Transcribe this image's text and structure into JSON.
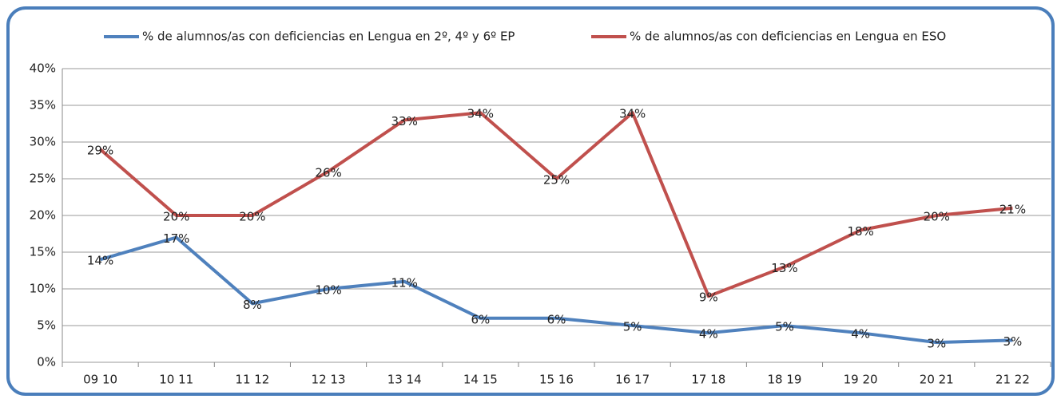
{
  "chart_data": {
    "type": "line",
    "categories": [
      "09 10",
      "10 11",
      "11 12",
      "12 13",
      "13 14",
      "14 15",
      "15 16",
      "16 17",
      "17 18",
      "18 19",
      "19 20",
      "20 21",
      "21 22"
    ],
    "series": [
      {
        "name": "% de alumnos/as con deficiencias en Lengua  en 2º, 4º y 6º EP",
        "color": "#4f81bd",
        "values": [
          14,
          17,
          8,
          10,
          11,
          6,
          6,
          5,
          4,
          5,
          4,
          2.7,
          3
        ],
        "value_labels": [
          "14%",
          "17%",
          "8%",
          "10%",
          "11%",
          "6%",
          "6%",
          "5%",
          "4%",
          "5%",
          "4%",
          "3%",
          "3%"
        ]
      },
      {
        "name": "% de alumnos/as con deficiencias en Lengua  en  ESO",
        "color": "#c0504d",
        "values": [
          29,
          20,
          20,
          26,
          33,
          34,
          25,
          34,
          9,
          13,
          18,
          20,
          21
        ],
        "value_labels": [
          "29%",
          "20%",
          "20%",
          "26%",
          "33%",
          "34%",
          "25%",
          "34%",
          "9%",
          "13%",
          "18%",
          "20%",
          "21%"
        ]
      }
    ],
    "ylim": [
      0,
      40
    ],
    "yticks": [
      {
        "value": 0,
        "label": "0%"
      },
      {
        "value": 5,
        "label": "5%"
      },
      {
        "value": 10,
        "label": "10%"
      },
      {
        "value": 15,
        "label": "15%"
      },
      {
        "value": 20,
        "label": "20%"
      },
      {
        "value": 25,
        "label": "25%"
      },
      {
        "value": 30,
        "label": "30%"
      },
      {
        "value": 35,
        "label": "35%"
      },
      {
        "value": 40,
        "label": "40%"
      }
    ],
    "grid": true,
    "legend": "top"
  }
}
